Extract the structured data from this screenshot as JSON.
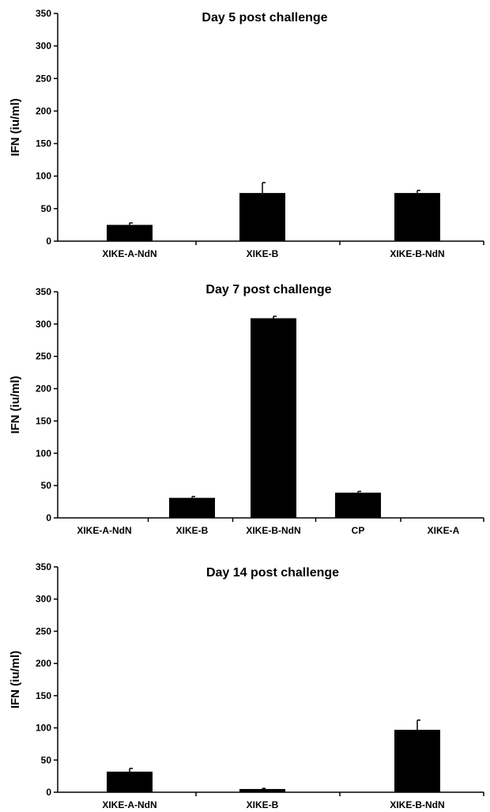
{
  "chart_data": [
    {
      "type": "bar",
      "title": "Day 5 post challenge",
      "ylabel": "IFN (iu/ml)",
      "xlabel": "",
      "ylim": [
        0,
        350
      ],
      "yticks": [
        "0",
        "50",
        "100",
        "150",
        "200",
        "250",
        "300",
        "350"
      ],
      "categories": [
        "XIKE-A-NdN",
        "XIKE-B",
        "XIKE-B-NdN"
      ],
      "values": [
        25,
        74,
        74
      ],
      "errors": [
        3,
        16,
        4
      ],
      "bar_color": "#000000"
    },
    {
      "type": "bar",
      "title": "Day 7 post challenge",
      "ylabel": "IFN (iu/ml)",
      "xlabel": "",
      "ylim": [
        0,
        350
      ],
      "yticks": [
        "0",
        "50",
        "100",
        "150",
        "200",
        "250",
        "300",
        "350"
      ],
      "categories": [
        "XIKE-A-NdN",
        "XIKE-B",
        "XIKE-B-NdN",
        "CP",
        "XIKE-A"
      ],
      "values": [
        0,
        31,
        309,
        39,
        0
      ],
      "errors": [
        0,
        2,
        3,
        2,
        0
      ],
      "bar_color": "#000000"
    },
    {
      "type": "bar",
      "title": "Day 14 post challenge",
      "ylabel": "IFN (iu/ml)",
      "xlabel": "",
      "ylim": [
        0,
        350
      ],
      "yticks": [
        "0",
        "50",
        "100",
        "150",
        "200",
        "250",
        "300",
        "350"
      ],
      "categories": [
        "XIKE-A-NdN",
        "XIKE-B",
        "XIKE-B-NdN"
      ],
      "values": [
        32,
        5,
        97
      ],
      "errors": [
        5,
        1,
        15
      ],
      "bar_color": "#000000"
    }
  ]
}
